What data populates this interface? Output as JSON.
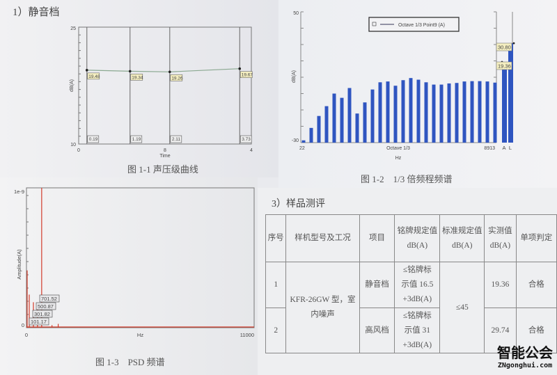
{
  "section1": {
    "heading": "1）静音档"
  },
  "section3": {
    "heading": "3）样品测评"
  },
  "chart_data": [
    {
      "type": "line",
      "caption": "图 1-1 声压级曲线",
      "xlabel": "Time",
      "ylabel": "dB(A)",
      "ylim": [
        10,
        25
      ],
      "xlim": [
        0,
        4
      ],
      "y_ticks": [
        "25",
        "10"
      ],
      "x_ticks": [
        "0",
        "8",
        "4"
      ],
      "cursors": [
        {
          "x": 0.19,
          "y": 19.48,
          "x_label": "0.19",
          "y_label": "19.48"
        },
        {
          "x": 1.19,
          "y": 19.34,
          "x_label": "1.19",
          "y_label": "19.34"
        },
        {
          "x": 2.11,
          "y": 19.26,
          "x_label": "2.11",
          "y_label": "19.26"
        },
        {
          "x": 3.73,
          "y": 19.67,
          "x_label": "3.73",
          "y_label": "19.67"
        }
      ],
      "color": "#8aa890"
    },
    {
      "type": "bar",
      "caption": "图 1-2　1/3 倍频程频谱",
      "xlabel": "Hz",
      "x_center_label": "Octave 1/3",
      "ylabel": "dB(A)",
      "ylim": [
        -30,
        50
      ],
      "y_ticks": [
        "50",
        "-30"
      ],
      "x_ticks": [
        "22",
        "8913"
      ],
      "legend": "Octave 1/3 Point9 (A)",
      "legend_position": "top",
      "values": [
        -28.6,
        -21.0,
        -13.7,
        -7.7,
        0.0,
        -2.6,
        3.4,
        -12.2,
        -5.4,
        2.5,
        6.9,
        7.4,
        4.8,
        8.2,
        9.5,
        8.5,
        6.9,
        5.5,
        5.5,
        6.2,
        6.5,
        7.4,
        7.6,
        7.6,
        7.4,
        6.7
      ],
      "totals": [
        {
          "name": "A",
          "value": 19.36,
          "label": "19.36"
        },
        {
          "name": "L",
          "value": 30.8,
          "label": "30.80"
        }
      ],
      "color": "#2f55c0"
    },
    {
      "type": "line",
      "caption": "图 1-3　PSD 频谱",
      "xlabel": "Hz",
      "ylabel": "Amplitude(A)",
      "ylim": [
        0,
        1e-09
      ],
      "xlim": [
        0,
        11000
      ],
      "y_ticks": [
        "1e-9",
        "0"
      ],
      "x_ticks": [
        "0",
        "11000"
      ],
      "peaks": [
        {
          "x": 0,
          "y": 4.5e-10
        },
        {
          "x": 101.17,
          "y": 2.6e-10,
          "label": "101.17"
        },
        {
          "x": 301.82,
          "y": 2e-10,
          "label": "301.82"
        },
        {
          "x": 500.87,
          "y": 1.6e-10,
          "label": "500.87"
        },
        {
          "x": 701.52,
          "y": 1.1e-09,
          "label": "701.52"
        },
        {
          "x": 1200,
          "y": 2e-11
        },
        {
          "x": 1500,
          "y": 3e-11
        }
      ],
      "color": "#d23b2a"
    }
  ],
  "table": {
    "headers": [
      "序号",
      "样机型号及工况",
      "项目",
      "铭牌规定值 dB(A)",
      "标准规定值 dB(A)",
      "实测值 dB(A)",
      "单项判定"
    ],
    "model": "KFR-26GW 型，室内噪声",
    "standard": "≤45",
    "rows": [
      {
        "no": "1",
        "item": "静音档",
        "rated_a": "≤铭牌标",
        "rated_b": "示值 16.5",
        "rated_c": "+3dB(A)",
        "measured": "19.36",
        "result": "合格"
      },
      {
        "no": "2",
        "item": "高风档",
        "rated_a": "≤铭牌标",
        "rated_b": "示值 31",
        "rated_c": "+3dB(A)",
        "measured": "29.74",
        "result": "合格"
      }
    ]
  },
  "watermark": {
    "logo": "智能公会",
    "url": "ZNgonghui.com"
  }
}
